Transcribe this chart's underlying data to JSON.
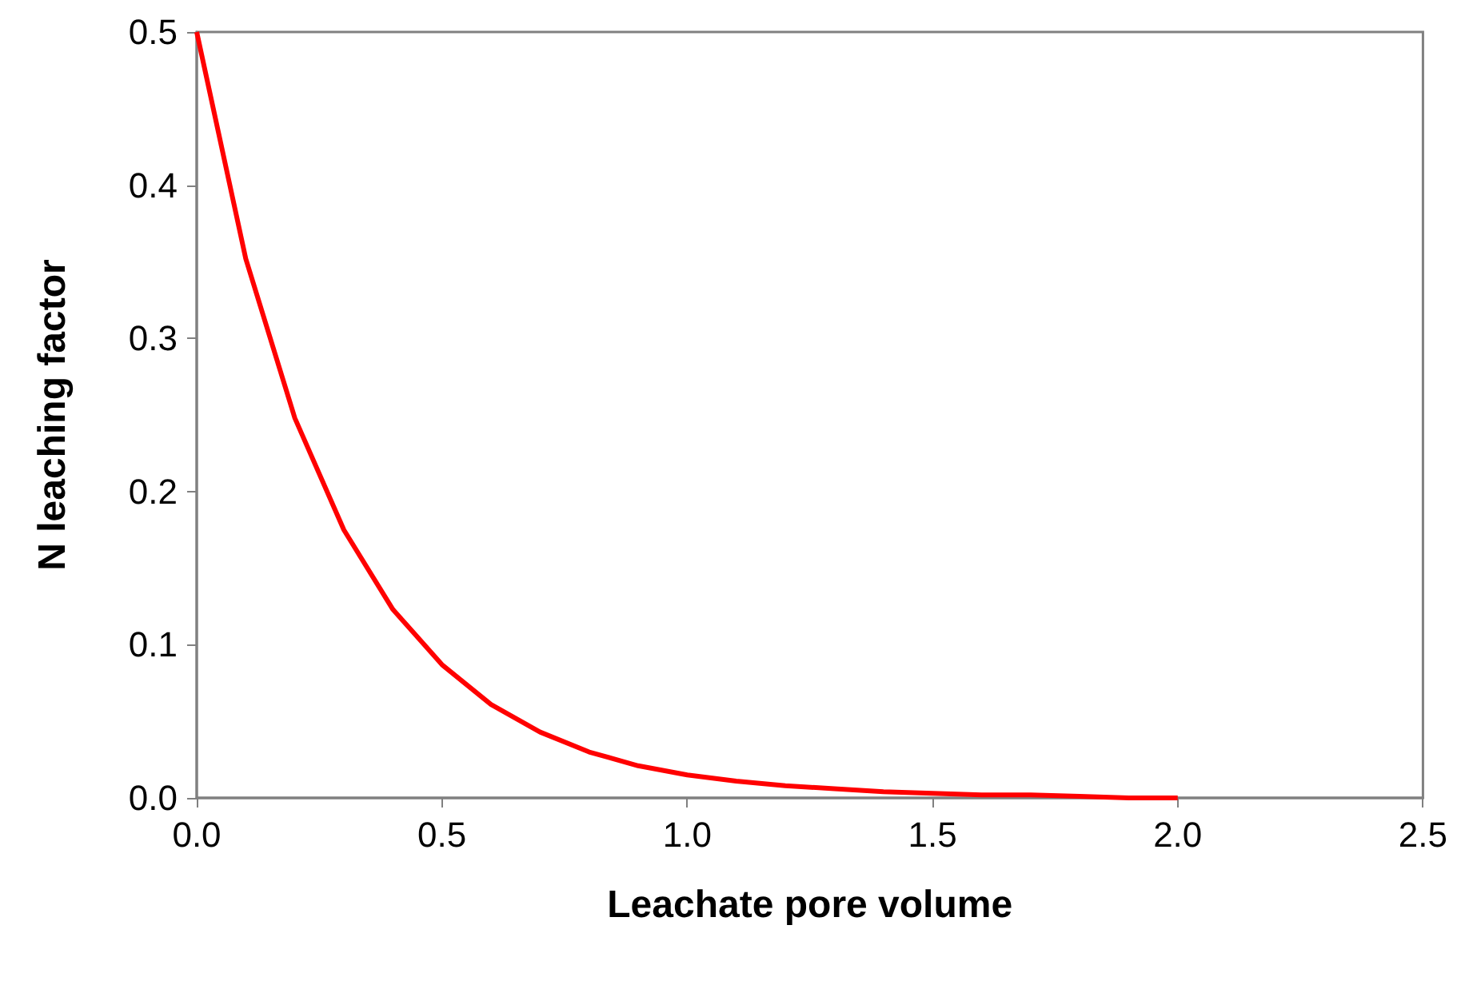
{
  "chart_data": {
    "type": "line",
    "xlabel": "Leachate pore volume",
    "ylabel": "N leaching factor",
    "x": [
      0,
      0.1,
      0.2,
      0.3,
      0.4,
      0.5,
      0.6,
      0.7,
      0.8,
      0.9,
      1.0,
      1.1,
      1.2,
      1.3,
      1.4,
      1.5,
      1.6,
      1.7,
      1.8,
      1.9,
      2.0
    ],
    "series": [
      {
        "color": "#ff0000",
        "values": [
          0.5,
          0.352,
          0.248,
          0.175,
          0.123,
          0.087,
          0.061,
          0.043,
          0.03,
          0.021,
          0.015,
          0.011,
          0.008,
          0.006,
          0.004,
          0.003,
          0.002,
          0.002,
          0.001,
          0.0,
          0.0
        ]
      }
    ],
    "xlim": [
      0,
      2.5
    ],
    "xticks": [
      {
        "value": 0,
        "label": "0.0"
      },
      0.5,
      {
        "value": 1,
        "label": "1.0"
      },
      1.5,
      {
        "value": 2,
        "label": "2.0"
      },
      2.5
    ],
    "ylim": [
      0,
      0.5
    ],
    "yticks": [
      {
        "value": 0,
        "label": "0.0"
      },
      0.1,
      0.2,
      0.3,
      0.4,
      0.5
    ],
    "grid": false,
    "marker": "none",
    "line_style": "solid"
  }
}
